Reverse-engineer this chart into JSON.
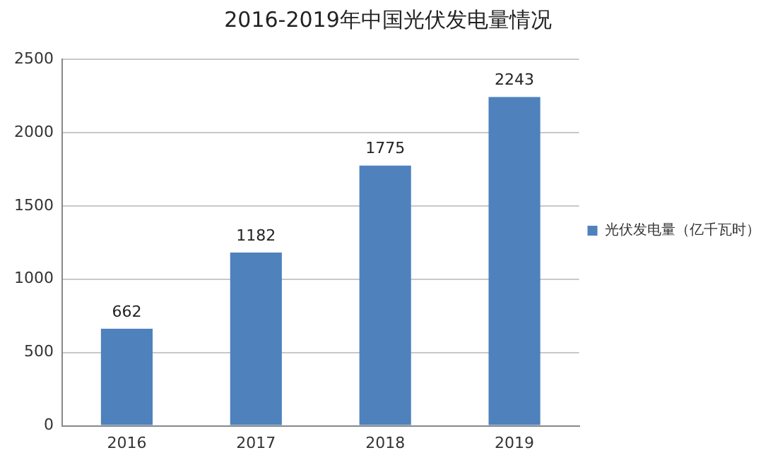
{
  "chart_data": {
    "type": "bar",
    "title": "2016-2019年中国光伏发电量情况",
    "categories": [
      "2016",
      "2017",
      "2018",
      "2019"
    ],
    "series": [
      {
        "name": "光伏发电量（亿千瓦时）",
        "color": "#4f81bd",
        "values": [
          662,
          1182,
          1775,
          2243
        ]
      }
    ],
    "ylim": [
      0,
      2500
    ],
    "yticks": [
      0,
      500,
      1000,
      1500,
      2000,
      2500
    ],
    "grid": "y",
    "legend": "right",
    "data_labels": true
  }
}
